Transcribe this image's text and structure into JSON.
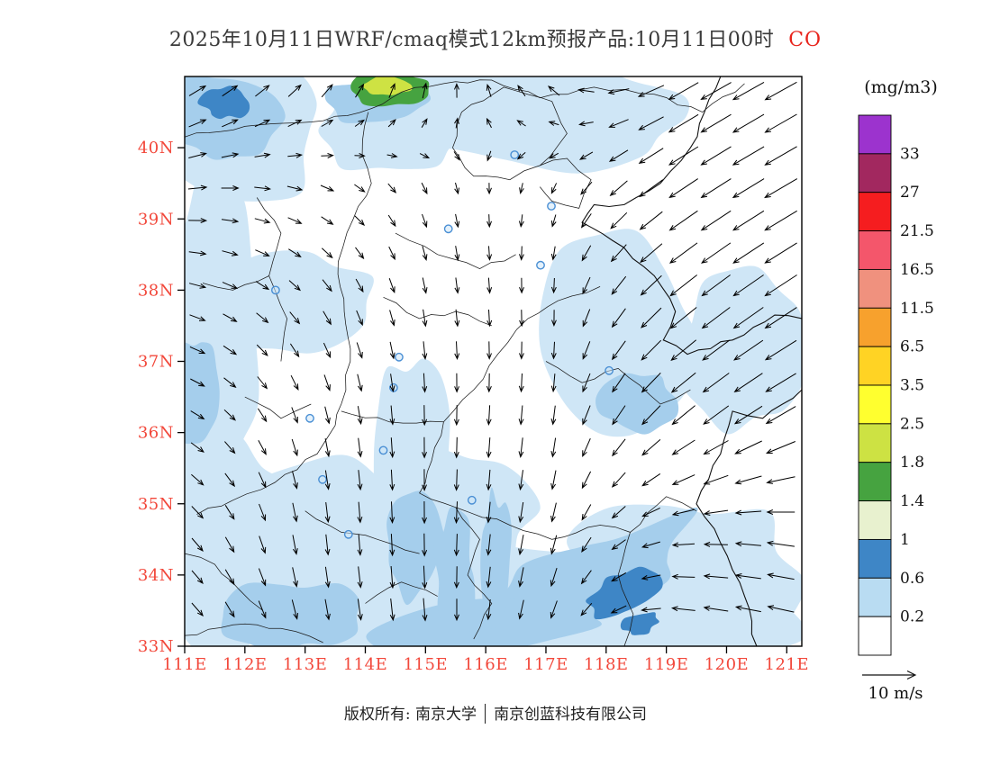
{
  "title": {
    "text": "2025年10月11日WRF/cmaq模式12km预报产品:10月11日00时",
    "species": "CO",
    "species_color": "#e8241c",
    "text_color": "#3a3a3a"
  },
  "colorbar": {
    "units_label": "(mg/m3)",
    "tick_labels": [
      "33",
      "27",
      "21.5",
      "16.5",
      "11.5",
      "6.5",
      "3.5",
      "2.5",
      "1.8",
      "1.4",
      "1",
      "0.6",
      "0.2"
    ],
    "cell_colors_top_to_bottom": [
      "#9C33CE",
      "#A2285F",
      "#F51D1F",
      "#F4566B",
      "#F0917E",
      "#F7A12D",
      "#FFD324",
      "#FFFF2F",
      "#CDE243",
      "#46A340",
      "#E8F1CF",
      "#3E86C6",
      "#B9DCF2",
      "#FFFFFF"
    ]
  },
  "axes": {
    "lat_tick_labels": [
      "40N",
      "39N",
      "38N",
      "37N",
      "36N",
      "35N",
      "34N",
      "33N"
    ],
    "lat_tick_values": [
      40,
      39,
      38,
      37,
      36,
      35,
      34,
      33
    ],
    "lon_tick_labels": [
      "111E",
      "112E",
      "113E",
      "114E",
      "115E",
      "116E",
      "117E",
      "118E",
      "119E",
      "120E",
      "121E"
    ],
    "lon_tick_values": [
      111,
      112,
      113,
      114,
      115,
      116,
      117,
      118,
      119,
      120,
      121
    ],
    "label_color": "#F2483B"
  },
  "wind_legend": {
    "label": "10 m/s"
  },
  "footer": {
    "text1": "版权所有: 南京大学",
    "text2": "南京创蓝科技有限公司"
  },
  "chart_data": {
    "type": "heatmap",
    "subtype": "filled-contour-map-with-wind-vectors",
    "variable": "CO",
    "units": "mg/m3",
    "model": "WRF/cmaq 12km",
    "forecast_date": "2025年10月11日",
    "valid_time": "10月11日00时",
    "lon_range": [
      111,
      121.25
    ],
    "lat_range": [
      33,
      41
    ],
    "contour_levels": [
      0.2,
      0.6,
      1,
      1.4,
      1.8,
      2.5,
      3.5,
      6.5,
      11.5,
      16.5,
      21.5,
      27,
      33
    ],
    "fill_regions": [
      {
        "range": "0.2-0.6",
        "color": "#CFE6F6",
        "wobble": 0.18,
        "shapes": [
          [
            111.9,
            40.24,
            1.42,
            0.95,
            0
          ],
          [
            111.45,
            37.46,
            0.82,
            2.28,
            0
          ],
          [
            111.67,
            34.43,
            1.05,
            1.52,
            0
          ],
          [
            115.94,
            33.54,
            5.09,
            0.95,
            0
          ],
          [
            113.24,
            34.43,
            1.8,
            1.14,
            0
          ],
          [
            116.84,
            40.43,
            2.69,
            0.7,
            0
          ],
          [
            118.18,
            37.21,
            1.35,
            1.52,
            0
          ],
          [
            119.38,
            33.92,
            1.95,
            1.14,
            0
          ],
          [
            112.8,
            37.84,
            1.35,
            0.76,
            0
          ],
          [
            115.49,
            34.93,
            1.35,
            0.88,
            0
          ],
          [
            114.44,
            40.24,
            1.2,
            0.63,
            0
          ],
          [
            120.28,
            37.21,
            1.05,
            1.14,
            0
          ],
          [
            114.82,
            35.69,
            0.67,
            1.39,
            0
          ]
        ]
      },
      {
        "range": "0.2-0.6",
        "color": "#A5CEEC",
        "wobble": 0.22,
        "shapes": [
          [
            111.67,
            40.43,
            0.9,
            0.63,
            0
          ],
          [
            111.22,
            36.58,
            0.37,
            0.76,
            0
          ],
          [
            114.22,
            40.68,
            0.82,
            0.35,
            0
          ],
          [
            117.43,
            33.8,
            2.24,
            0.57,
            -25
          ],
          [
            115.94,
            33.23,
            1.8,
            0.44,
            -10
          ],
          [
            118.48,
            36.45,
            0.67,
            0.44,
            0
          ],
          [
            112.8,
            33.42,
            1.05,
            0.51,
            0
          ],
          [
            114.82,
            34.43,
            0.52,
            0.76,
            0
          ],
          [
            115.49,
            33.92,
            0.33,
            0.88,
            0
          ],
          [
            116.16,
            34.18,
            0.27,
            1.01,
            0
          ]
        ]
      },
      {
        "range": "0.6-1.0",
        "color": "#3E86C6",
        "wobble": 0.25,
        "shapes": [
          [
            118.3,
            33.73,
            0.57,
            0.28,
            -25
          ],
          [
            111.67,
            40.62,
            0.37,
            0.23,
            0
          ],
          [
            118.56,
            33.32,
            0.3,
            0.15,
            -20
          ]
        ]
      },
      {
        "range": "1.4-1.8",
        "color": "#46A340",
        "wobble": 0.15,
        "shapes": [
          [
            114.41,
            40.82,
            0.63,
            0.25,
            0
          ]
        ]
      },
      {
        "range": "1.8-2.5",
        "color": "#CEE243",
        "wobble": 0.15,
        "shapes": [
          [
            114.37,
            40.87,
            0.39,
            0.14,
            0
          ]
        ]
      }
    ],
    "city_markers": [
      [
        116.48,
        39.9
      ],
      [
        117.09,
        39.18
      ],
      [
        115.38,
        38.86
      ],
      [
        116.91,
        38.35
      ],
      [
        112.51,
        38.0
      ],
      [
        114.56,
        37.06
      ],
      [
        118.05,
        36.87
      ],
      [
        114.47,
        36.63
      ],
      [
        113.08,
        36.2
      ],
      [
        113.29,
        35.34
      ],
      [
        113.72,
        34.57
      ],
      [
        115.77,
        35.05
      ],
      [
        114.3,
        35.75
      ]
    ],
    "boundaries": [
      [
        [
          111,
          40.15
        ],
        [
          112,
          40.3
        ],
        [
          112.9,
          40.35
        ],
        [
          113.7,
          40.45
        ],
        [
          114.1,
          40.55
        ],
        [
          114.6,
          40.78
        ],
        [
          115.3,
          40.9
        ],
        [
          116.1,
          40.95
        ],
        [
          116.9,
          40.7
        ],
        [
          117.8,
          40.85
        ],
        [
          118.8,
          40.75
        ],
        [
          119.6,
          40.5
        ],
        [
          120.3,
          40.9
        ]
      ],
      [
        [
          114.05,
          40.5
        ],
        [
          113.95,
          39.9
        ],
        [
          114.1,
          39.5
        ],
        [
          113.8,
          39
        ],
        [
          113.55,
          38.4
        ],
        [
          113.65,
          37.7
        ],
        [
          113.75,
          37
        ],
        [
          113.6,
          36.4
        ],
        [
          113.5,
          36.1
        ]
      ],
      [
        [
          113.5,
          36.1
        ],
        [
          113.2,
          35.7
        ],
        [
          112.5,
          35.3
        ],
        [
          111.8,
          35.05
        ],
        [
          111.2,
          34.85
        ]
      ],
      [
        [
          113.6,
          36.3
        ],
        [
          114.4,
          36.15
        ],
        [
          115.3,
          36.15
        ],
        [
          115.8,
          36.6
        ],
        [
          116.2,
          37.1
        ],
        [
          116.7,
          37.6
        ],
        [
          117.2,
          37.85
        ],
        [
          117.9,
          38.05
        ]
      ],
      [
        [
          115.3,
          36.15
        ],
        [
          115.1,
          35.6
        ],
        [
          114.9,
          35.15
        ],
        [
          115.5,
          34.95
        ]
      ],
      [
        [
          115.5,
          34.95
        ],
        [
          116.4,
          34.7
        ],
        [
          117.1,
          34.5
        ],
        [
          117.9,
          34.7
        ],
        [
          118.4,
          34.6
        ],
        [
          119,
          35.1
        ],
        [
          119.5,
          34.9
        ]
      ],
      [
        [
          115.5,
          34.95
        ],
        [
          115.9,
          34.5
        ],
        [
          115.7,
          34
        ],
        [
          116.1,
          33.6
        ],
        [
          115.8,
          33.1
        ]
      ],
      [
        [
          118.4,
          34.6
        ],
        [
          118.2,
          34
        ],
        [
          118.45,
          33.45
        ],
        [
          118.3,
          33
        ]
      ],
      [
        [
          111,
          33.15
        ],
        [
          111.8,
          33.3
        ],
        [
          112.6,
          33.25
        ],
        [
          113.3,
          33.05
        ]
      ],
      [
        [
          115.45,
          40
        ],
        [
          115.6,
          40.5
        ],
        [
          116.3,
          40.85
        ],
        [
          117.1,
          40.65
        ],
        [
          117.35,
          40.2
        ],
        [
          116.9,
          39.75
        ],
        [
          116.4,
          39.55
        ],
        [
          115.8,
          39.6
        ],
        [
          115.45,
          40
        ]
      ],
      [
        [
          116.9,
          39.75
        ],
        [
          117.35,
          39.85
        ],
        [
          117.75,
          39.55
        ],
        [
          117.55,
          39.15
        ],
        [
          117.1,
          39.25
        ],
        [
          116.9,
          39.45
        ]
      ],
      [
        [
          111,
          34.3
        ],
        [
          111.5,
          34.15
        ],
        [
          111.9,
          33.8
        ],
        [
          112.3,
          33.5
        ]
      ],
      [
        [
          112.2,
          39.3
        ],
        [
          112.6,
          38.8
        ],
        [
          112.4,
          38.2
        ],
        [
          112.7,
          37.6
        ],
        [
          112.6,
          37
        ]
      ],
      [
        [
          113,
          34.9
        ],
        [
          113.6,
          34.6
        ],
        [
          114.2,
          34.5
        ],
        [
          114.9,
          34.3
        ]
      ],
      [
        [
          117,
          37
        ],
        [
          117.6,
          36.7
        ],
        [
          118.2,
          36.9
        ],
        [
          118.9,
          36.4
        ],
        [
          119.4,
          36.6
        ]
      ],
      [
        [
          114.5,
          38.8
        ],
        [
          115.2,
          38.5
        ],
        [
          115.9,
          38.3
        ],
        [
          116.5,
          38.5
        ]
      ],
      [
        [
          114,
          33.6
        ],
        [
          114.6,
          33.9
        ],
        [
          115.2,
          33.7
        ]
      ],
      [
        [
          112,
          36.5
        ],
        [
          112.6,
          36.2
        ],
        [
          113.1,
          36.4
        ]
      ],
      [
        [
          114.3,
          37.9
        ],
        [
          114.9,
          37.6
        ],
        [
          115.5,
          37.7
        ],
        [
          116.1,
          37.5
        ]
      ],
      [
        [
          112.4,
          38.2
        ],
        [
          111.8,
          38
        ],
        [
          111.3,
          38.1
        ]
      ]
    ],
    "coastlines": [
      [
        [
          119.9,
          41
        ],
        [
          119.4,
          40
        ],
        [
          118.9,
          39.5
        ],
        [
          118.3,
          39.2
        ],
        [
          117.8,
          39.2
        ],
        [
          117.6,
          38.95
        ],
        [
          118.1,
          38.7
        ],
        [
          118.8,
          38.2
        ],
        [
          119.15,
          37.7
        ],
        [
          118.95,
          37.3
        ],
        [
          119.35,
          37.1
        ],
        [
          120.1,
          37.3
        ],
        [
          120.8,
          37.65
        ],
        [
          121.25,
          37.6
        ]
      ],
      [
        [
          121.25,
          36.6
        ],
        [
          120.6,
          36.2
        ],
        [
          120.1,
          36.3
        ],
        [
          119.9,
          35.7
        ],
        [
          119.5,
          35
        ],
        [
          119.9,
          34.45
        ],
        [
          120.3,
          33.7
        ],
        [
          120.5,
          33
        ]
      ]
    ],
    "wind_grid": {
      "reference_speed_ms": 10,
      "lons": [
        111,
        113.05,
        115.1,
        117.15,
        119.2,
        121.25
      ],
      "lats": [
        41,
        39.4,
        37.8,
        36.2,
        34.6,
        33
      ],
      "uv_rows_top_to_bottom": [
        [
          [
            0.7,
            -0.45
          ],
          [
            0.5,
            -0.6
          ],
          [
            0.1,
            -0.8
          ],
          [
            -0.5,
            -0.5
          ],
          [
            -1.25,
            0.7
          ],
          [
            -1.35,
            0.75
          ]
        ],
        [
          [
            0.8,
            -0.1
          ],
          [
            0.6,
            0.2
          ],
          [
            0.2,
            0.5
          ],
          [
            -0.2,
            0.45
          ],
          [
            -1.2,
            0.8
          ],
          [
            -1.4,
            0.8
          ]
        ],
        [
          [
            0.7,
            0.2
          ],
          [
            0.4,
            0.5
          ],
          [
            0.1,
            0.7
          ],
          [
            0,
            0.65
          ],
          [
            -1.1,
            0.9
          ],
          [
            -1.4,
            0.9
          ]
        ],
        [
          [
            0.6,
            0.3
          ],
          [
            0.2,
            0.7
          ],
          [
            0,
            0.85
          ],
          [
            -0.1,
            0.8
          ],
          [
            -0.95,
            0.8
          ],
          [
            -1.3,
            0.7
          ]
        ],
        [
          [
            0.5,
            0.5
          ],
          [
            0.1,
            0.85
          ],
          [
            0,
            0.95
          ],
          [
            -0.2,
            0.8
          ],
          [
            -0.9,
            0.1
          ],
          [
            -1.2,
            -0.2
          ]
        ],
        [
          [
            0.5,
            0.5
          ],
          [
            0.2,
            0.85
          ],
          [
            0.1,
            0.95
          ],
          [
            -0.3,
            0.7
          ],
          [
            -1,
            -0.2
          ],
          [
            -1.1,
            -0.3
          ]
        ]
      ]
    }
  }
}
